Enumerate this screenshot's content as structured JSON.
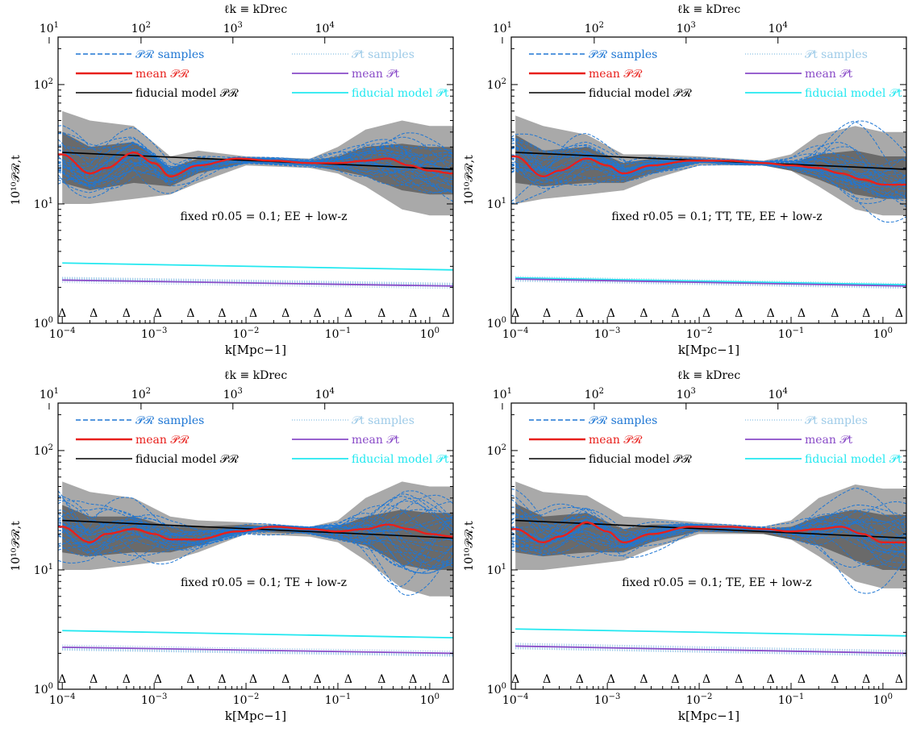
{
  "colors": {
    "samples": "#1f77d4",
    "mean_R": "#e8201c",
    "fiducial_R": "#000000",
    "samples_t": "#9ecbe8",
    "mean_t": "#8a4cc8",
    "fiducial_t": "#22e8f0",
    "band_outer": "#a9a9a9",
    "band_inner": "#6a6a6a"
  },
  "chart_data": [
    {
      "type": "line",
      "title": "",
      "annotation": "fixed r0.05 = 0.1; EE + low-z",
      "xlabel": "k[Mpc−1]",
      "ylabel": "10¹⁰𝒫ℛ,t",
      "top_xlabel": "ℓk ≡ kDrec",
      "x_scale": "log",
      "y_scale": "log",
      "xlim": [
        9e-05,
        1.8
      ],
      "ylim": [
        1,
        250
      ],
      "x_ticks": [
        "10−4",
        "10−3",
        "10−2",
        "10−1",
        "100"
      ],
      "y_ticks": [
        "100",
        "101",
        "102"
      ],
      "top_ticks": [
        "101",
        "102",
        "103",
        "104"
      ],
      "top_tick_k": [
        7.2e-05,
        0.00072,
        0.0072,
        0.072
      ],
      "legend_position": "top",
      "legend": [
        "𝒫ℛ samples",
        "mean 𝒫ℛ",
        "fiducial model 𝒫ℛ",
        "𝒫t samples",
        "mean 𝒫t",
        "fiducial model 𝒫t"
      ],
      "knot_marker": "Δ",
      "knots_k": [
        0.0001,
        0.00022,
        0.0005,
        0.0011,
        0.0025,
        0.0055,
        0.012,
        0.027,
        0.06,
        0.13,
        0.3,
        0.66,
        1.5
      ],
      "mean_R": {
        "x": [
          0.0001,
          0.0002,
          0.0003,
          0.0006,
          0.001,
          0.0015,
          0.003,
          0.008,
          0.02,
          0.05,
          0.1,
          0.2,
          0.35,
          0.6,
          1,
          1.8
        ],
        "y": [
          26,
          18,
          20,
          27,
          22,
          17,
          21,
          24,
          23,
          22,
          22,
          23,
          24,
          21,
          19,
          18
        ]
      },
      "fiducial_R": {
        "x": [
          0.0001,
          1.8
        ],
        "y": [
          27,
          19.5
        ]
      },
      "mean_t": {
        "x": [
          0.0001,
          1.8
        ],
        "y": [
          2.3,
          2.05
        ]
      },
      "fiducial_t": {
        "x": [
          0.0001,
          1.8
        ],
        "y": [
          3.2,
          2.8
        ]
      },
      "band_outer": {
        "x": [
          0.0001,
          0.0002,
          0.0006,
          0.0015,
          0.003,
          0.01,
          0.05,
          0.1,
          0.2,
          0.5,
          1,
          1.8
        ],
        "lo": [
          10,
          10,
          11,
          12,
          15,
          21,
          20,
          18,
          14,
          9,
          8,
          8
        ],
        "hi": [
          60,
          50,
          45,
          25,
          28,
          25,
          24,
          30,
          42,
          50,
          45,
          45
        ]
      },
      "band_inner": {
        "x": [
          0.0001,
          0.0002,
          0.0006,
          0.0015,
          0.003,
          0.01,
          0.05,
          0.1,
          0.2,
          0.5,
          1,
          1.8
        ],
        "lo": [
          15,
          13,
          15,
          14,
          18,
          22,
          21,
          19,
          17,
          13,
          12,
          12
        ],
        "hi": [
          40,
          30,
          33,
          20,
          24,
          24,
          23,
          25,
          30,
          32,
          30,
          30
        ]
      }
    },
    {
      "type": "line",
      "title": "",
      "annotation": "fixed r0.05 = 0.1; TT, TE, EE + low-z",
      "xlabel": "k[Mpc−1]",
      "ylabel": "10¹⁰𝒫ℛ,t",
      "top_xlabel": "ℓk ≡ kDrec",
      "x_scale": "log",
      "y_scale": "log",
      "xlim": [
        9e-05,
        1.8
      ],
      "ylim": [
        1,
        250
      ],
      "x_ticks": [
        "10−4",
        "10−3",
        "10−2",
        "10−1",
        "100"
      ],
      "y_ticks": [
        "100",
        "101",
        "102"
      ],
      "top_ticks": [
        "101",
        "102",
        "103",
        "104"
      ],
      "top_tick_k": [
        7.2e-05,
        0.00072,
        0.0072,
        0.072
      ],
      "legend_position": "top",
      "legend": [
        "𝒫ℛ samples",
        "mean 𝒫ℛ",
        "fiducial model 𝒫ℛ",
        "𝒫t samples",
        "mean 𝒫t",
        "fiducial model 𝒫t"
      ],
      "knot_marker": "Δ",
      "knots_k": [
        0.0001,
        0.00022,
        0.0005,
        0.0011,
        0.0025,
        0.0055,
        0.012,
        0.027,
        0.06,
        0.13,
        0.3,
        0.66,
        1.5
      ],
      "mean_R": {
        "x": [
          0.0001,
          0.0002,
          0.0003,
          0.0006,
          0.001,
          0.0015,
          0.003,
          0.008,
          0.02,
          0.05,
          0.1,
          0.2,
          0.35,
          0.6,
          1,
          1.8
        ],
        "y": [
          25,
          17,
          19,
          24,
          21,
          18,
          21,
          23,
          23,
          22,
          21,
          20,
          18,
          16,
          14.5,
          14.5
        ]
      },
      "fiducial_R": {
        "x": [
          0.0001,
          1.8
        ],
        "y": [
          27,
          19.5
        ]
      },
      "mean_t": {
        "x": [
          0.0001,
          1.8
        ],
        "y": [
          2.35,
          2.05
        ]
      },
      "fiducial_t": {
        "x": [
          0.0001,
          1.8
        ],
        "y": [
          2.4,
          2.1
        ]
      },
      "band_outer": {
        "x": [
          0.0001,
          0.0002,
          0.0006,
          0.0015,
          0.003,
          0.01,
          0.05,
          0.1,
          0.2,
          0.5,
          1,
          1.8
        ],
        "lo": [
          10,
          11,
          12,
          13,
          16,
          21,
          21,
          19,
          14,
          9,
          8,
          8
        ],
        "hi": [
          55,
          45,
          38,
          26,
          26,
          25,
          23,
          26,
          38,
          45,
          40,
          40
        ]
      },
      "band_inner": {
        "x": [
          0.0001,
          0.0002,
          0.0006,
          0.0015,
          0.003,
          0.01,
          0.05,
          0.1,
          0.2,
          0.5,
          1,
          1.8
        ],
        "lo": [
          15,
          14,
          15,
          15,
          18,
          22,
          21,
          19,
          16,
          12,
          11,
          11
        ],
        "hi": [
          38,
          28,
          30,
          22,
          24,
          24,
          22,
          22,
          26,
          28,
          25,
          25
        ]
      }
    },
    {
      "type": "line",
      "title": "",
      "annotation": "fixed r0.05 = 0.1; TE + low-z",
      "xlabel": "k[Mpc−1]",
      "ylabel": "10¹⁰𝒫ℛ,t",
      "top_xlabel": "ℓk ≡ kDrec",
      "x_scale": "log",
      "y_scale": "log",
      "xlim": [
        9e-05,
        1.8
      ],
      "ylim": [
        1,
        250
      ],
      "x_ticks": [
        "10−4",
        "10−3",
        "10−2",
        "10−1",
        "100"
      ],
      "y_ticks": [
        "100",
        "101",
        "102"
      ],
      "top_ticks": [
        "101",
        "102",
        "103",
        "104"
      ],
      "top_tick_k": [
        7.2e-05,
        0.00072,
        0.0072,
        0.072
      ],
      "legend_position": "top",
      "legend": [
        "𝒫ℛ samples",
        "mean 𝒫ℛ",
        "fiducial model 𝒫ℛ",
        "𝒫t samples",
        "mean 𝒫t",
        "fiducial model 𝒫t"
      ],
      "knot_marker": "Δ",
      "knots_k": [
        0.0001,
        0.00022,
        0.0005,
        0.0011,
        0.0025,
        0.0055,
        0.012,
        0.027,
        0.06,
        0.13,
        0.3,
        0.66,
        1.5
      ],
      "mean_R": {
        "x": [
          0.0001,
          0.0002,
          0.0003,
          0.0006,
          0.001,
          0.0015,
          0.003,
          0.008,
          0.02,
          0.05,
          0.1,
          0.2,
          0.35,
          0.6,
          1,
          1.8
        ],
        "y": [
          23,
          17,
          20,
          22,
          20,
          18,
          18,
          21,
          23,
          22,
          21,
          22,
          24,
          22,
          20,
          19
        ]
      },
      "fiducial_R": {
        "x": [
          0.0001,
          1.8
        ],
        "y": [
          26,
          18.5
        ]
      },
      "mean_t": {
        "x": [
          0.0001,
          1.8
        ],
        "y": [
          2.25,
          2.0
        ]
      },
      "fiducial_t": {
        "x": [
          0.0001,
          1.8
        ],
        "y": [
          3.1,
          2.7
        ]
      },
      "band_outer": {
        "x": [
          0.0001,
          0.0002,
          0.0006,
          0.0015,
          0.003,
          0.01,
          0.05,
          0.1,
          0.2,
          0.5,
          1,
          1.8
        ],
        "lo": [
          10,
          10,
          11,
          12,
          14,
          20,
          19,
          17,
          12,
          7,
          6,
          6
        ],
        "hi": [
          55,
          45,
          40,
          28,
          26,
          25,
          23,
          26,
          40,
          55,
          50,
          50
        ]
      },
      "band_inner": {
        "x": [
          0.0001,
          0.0002,
          0.0006,
          0.0015,
          0.003,
          0.01,
          0.05,
          0.1,
          0.2,
          0.5,
          1,
          1.8
        ],
        "lo": [
          14,
          13,
          14,
          14,
          16,
          21,
          20,
          18,
          16,
          11,
          10,
          10
        ],
        "hi": [
          35,
          28,
          28,
          23,
          23,
          24,
          22,
          23,
          28,
          32,
          30,
          30
        ]
      }
    },
    {
      "type": "line",
      "title": "",
      "annotation": "fixed r0.05 = 0.1; TE, EE + low-z",
      "xlabel": "k[Mpc−1]",
      "ylabel": "10¹⁰𝒫ℛ,t",
      "top_xlabel": "ℓk ≡ kDrec",
      "x_scale": "log",
      "y_scale": "log",
      "xlim": [
        9e-05,
        1.8
      ],
      "ylim": [
        1,
        250
      ],
      "x_ticks": [
        "10−4",
        "10−3",
        "10−2",
        "10−1",
        "100"
      ],
      "y_ticks": [
        "100",
        "101",
        "102"
      ],
      "top_ticks": [
        "101",
        "102",
        "103",
        "104"
      ],
      "top_tick_k": [
        7.2e-05,
        0.00072,
        0.0072,
        0.072
      ],
      "legend_position": "top",
      "legend": [
        "𝒫ℛ samples",
        "mean 𝒫ℛ",
        "fiducial model 𝒫ℛ",
        "𝒫t samples",
        "mean 𝒫t",
        "fiducial model 𝒫t"
      ],
      "knot_marker": "Δ",
      "knots_k": [
        0.0001,
        0.00022,
        0.0005,
        0.0011,
        0.0025,
        0.0055,
        0.012,
        0.027,
        0.06,
        0.13,
        0.3,
        0.66,
        1.5
      ],
      "mean_R": {
        "x": [
          0.0001,
          0.0002,
          0.0003,
          0.0006,
          0.001,
          0.0015,
          0.003,
          0.008,
          0.02,
          0.05,
          0.1,
          0.2,
          0.35,
          0.6,
          1,
          1.8
        ],
        "y": [
          22,
          17,
          19,
          25,
          21,
          17,
          20,
          23,
          23,
          22,
          21,
          22,
          23,
          20,
          17,
          17
        ]
      },
      "fiducial_R": {
        "x": [
          0.0001,
          1.8
        ],
        "y": [
          26,
          18.5
        ]
      },
      "mean_t": {
        "x": [
          0.0001,
          1.8
        ],
        "y": [
          2.3,
          2.0
        ]
      },
      "fiducial_t": {
        "x": [
          0.0001,
          1.8
        ],
        "y": [
          3.2,
          2.8
        ]
      },
      "band_outer": {
        "x": [
          0.0001,
          0.0002,
          0.0006,
          0.0015,
          0.003,
          0.01,
          0.05,
          0.1,
          0.2,
          0.5,
          1,
          1.8
        ],
        "lo": [
          10,
          10,
          11,
          12,
          15,
          20,
          20,
          18,
          13,
          8,
          7,
          7
        ],
        "hi": [
          55,
          45,
          42,
          28,
          27,
          25,
          23,
          26,
          40,
          52,
          48,
          48
        ]
      },
      "band_inner": {
        "x": [
          0.0001,
          0.0002,
          0.0006,
          0.0015,
          0.003,
          0.01,
          0.05,
          0.1,
          0.2,
          0.5,
          1,
          1.8
        ],
        "lo": [
          14,
          13,
          14,
          14,
          17,
          21,
          20,
          18,
          16,
          12,
          10,
          10
        ],
        "hi": [
          36,
          28,
          30,
          22,
          24,
          24,
          22,
          23,
          28,
          32,
          29,
          29
        ]
      }
    }
  ]
}
